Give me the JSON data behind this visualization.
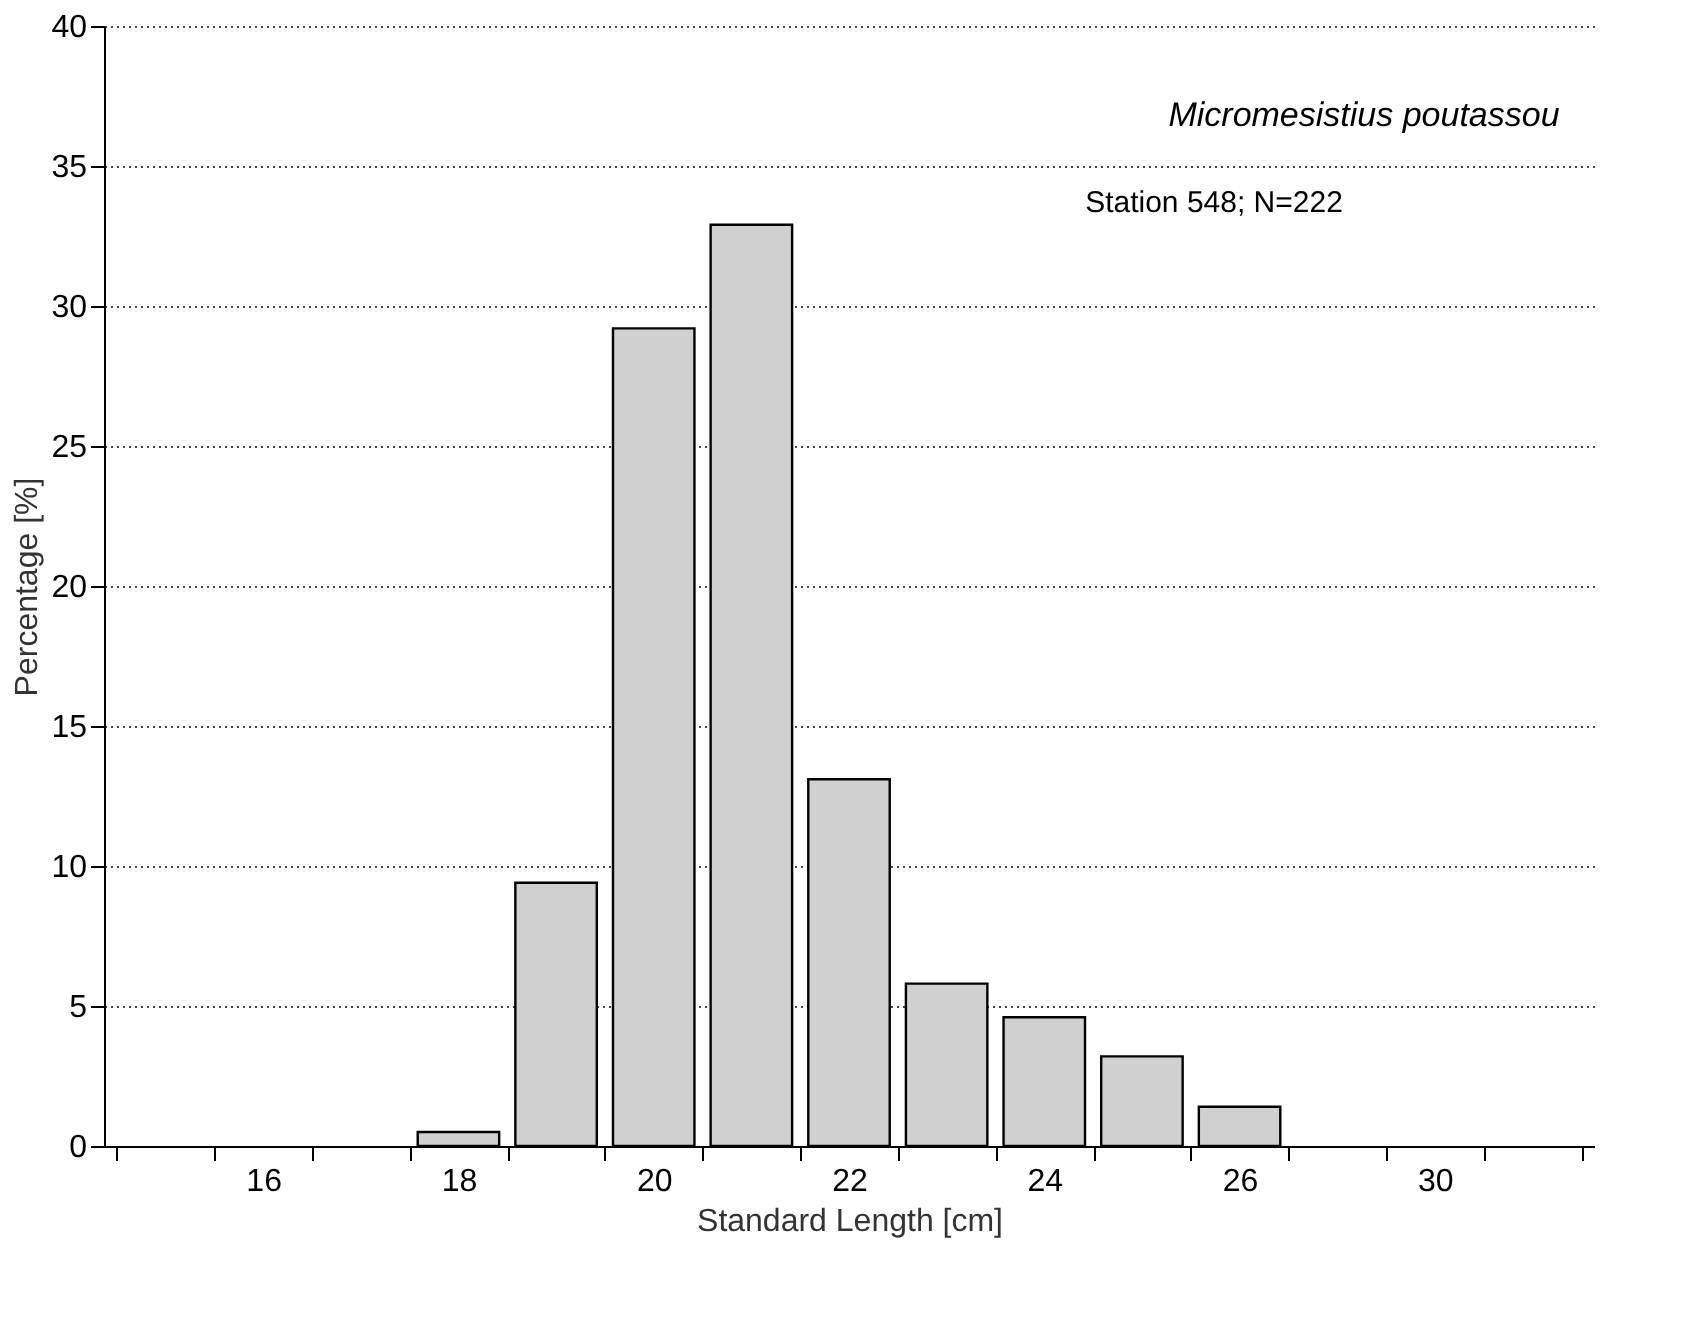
{
  "chart_data": {
    "type": "bar",
    "xlabel": "Standard Length [cm]",
    "ylabel": "Percentage [%]",
    "categories": [
      null,
      "16",
      null,
      "18",
      null,
      "20",
      null,
      "22",
      null,
      "24",
      null,
      "26",
      null,
      "30",
      null
    ],
    "values": [
      null,
      null,
      null,
      0.5,
      9.4,
      29.2,
      32.9,
      13.1,
      5.8,
      4.6,
      3.2,
      1.4,
      null,
      null,
      null
    ],
    "color": "#d0d0d0",
    "ylim": [
      0,
      40
    ],
    "yticks": [
      0,
      5,
      10,
      15,
      20,
      25,
      30,
      35,
      40
    ],
    "grid": "y",
    "annotations": [
      "Micromesistius poutassou",
      "Station 548; N=222"
    ]
  }
}
